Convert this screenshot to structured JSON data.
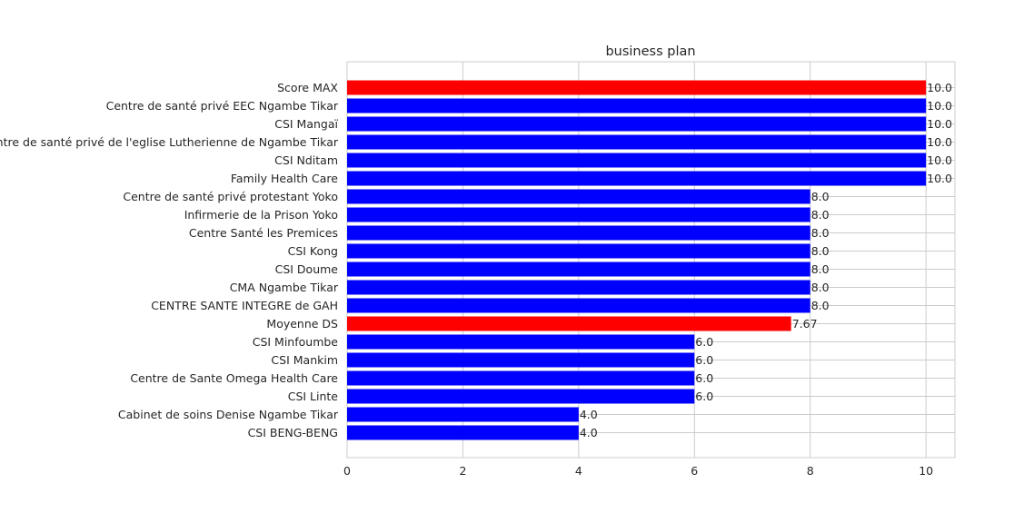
{
  "chart_data": {
    "type": "bar",
    "orientation": "horizontal",
    "title": "business plan",
    "xlabel": "",
    "ylabel": "",
    "xlim": [
      0,
      10.5
    ],
    "xticks": [
      0,
      2,
      4,
      6,
      8,
      10
    ],
    "grid": true,
    "colors": {
      "highlight": "#ff0000",
      "default": "#0000ff"
    },
    "categories": [
      "Score MAX",
      "Centre de santé privé EEC Ngambe Tikar",
      "CSI Mangaï",
      "Centre de santé privé  de l'eglise Lutherienne de Ngambe Tikar",
      "CSI Nditam",
      "Family Health Care",
      "Centre de santé privé protestant Yoko",
      "Infirmerie de la Prison Yoko",
      "Centre Santé les Premices",
      "CSI Kong",
      "CSI Doume",
      "CMA Ngambe Tikar",
      "CENTRE SANTE INTEGRE  de GAH",
      "Moyenne DS",
      "CSI Minfoumbe",
      "CSI Mankim",
      "Centre de Sante Omega Health  Care",
      "CSI Linte",
      "Cabinet de soins Denise Ngambe Tikar",
      "CSI BENG-BENG"
    ],
    "values": [
      10.0,
      10.0,
      10.0,
      10.0,
      10.0,
      10.0,
      8.0,
      8.0,
      8.0,
      8.0,
      8.0,
      8.0,
      8.0,
      7.67,
      6.0,
      6.0,
      6.0,
      6.0,
      4.0,
      4.0
    ],
    "value_labels": [
      "10.0",
      "10.0",
      "10.0",
      "10.0",
      "10.0",
      "10.0",
      "8.0",
      "8.0",
      "8.0",
      "8.0",
      "8.0",
      "8.0",
      "8.0",
      "7.67",
      "6.0",
      "6.0",
      "6.0",
      "6.0",
      "4.0",
      "4.0"
    ],
    "bar_colors": [
      "red",
      "blue",
      "blue",
      "blue",
      "blue",
      "blue",
      "blue",
      "blue",
      "blue",
      "blue",
      "blue",
      "blue",
      "blue",
      "red",
      "blue",
      "blue",
      "blue",
      "blue",
      "blue",
      "blue"
    ]
  }
}
